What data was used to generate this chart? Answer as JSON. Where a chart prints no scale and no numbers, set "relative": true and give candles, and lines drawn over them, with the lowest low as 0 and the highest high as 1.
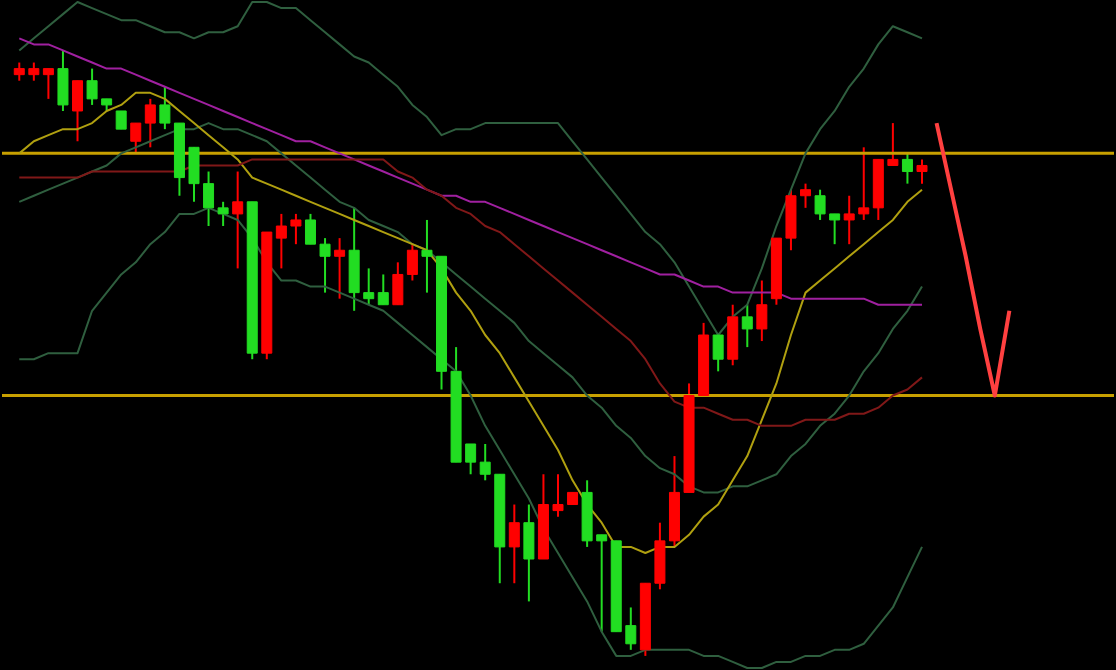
{
  "chart_data": {
    "type": "candlestick",
    "relative": true,
    "tick_labels": false,
    "categories": [
      null,
      null,
      null,
      null,
      null,
      null,
      null,
      null,
      null,
      null,
      null,
      null,
      null,
      null,
      null,
      null,
      null,
      null,
      null,
      null,
      null,
      null,
      null,
      null,
      null,
      null,
      null,
      null,
      null,
      null,
      null,
      null,
      null,
      null,
      null,
      null,
      null,
      null,
      null,
      null,
      null,
      null,
      null,
      null,
      null,
      null,
      null,
      null,
      null,
      null,
      null,
      null,
      null,
      null,
      null,
      null,
      null,
      null,
      null,
      null,
      null,
      null,
      null,
      null,
      null,
      null,
      null,
      null,
      null,
      null,
      null,
      null,
      null,
      null,
      null
    ],
    "ohlc": [
      [
        0.96,
        0.98,
        0.95,
        0.97
      ],
      [
        0.96,
        0.98,
        0.95,
        0.97
      ],
      [
        0.96,
        0.97,
        0.92,
        0.97
      ],
      [
        0.97,
        1,
        0.9,
        0.91
      ],
      [
        0.9,
        0.95,
        0.85,
        0.95
      ],
      [
        0.95,
        0.97,
        0.91,
        0.92
      ],
      [
        0.92,
        0.92,
        0.9,
        0.91
      ],
      [
        0.9,
        0.9,
        0.87,
        0.87
      ],
      [
        0.85,
        0.88,
        0.83,
        0.88
      ],
      [
        0.88,
        0.92,
        0.84,
        0.91
      ],
      [
        0.91,
        0.94,
        0.87,
        0.88
      ],
      [
        0.88,
        0.88,
        0.76,
        0.79
      ],
      [
        0.84,
        0.84,
        0.75,
        0.78
      ],
      [
        0.78,
        0.8,
        0.71,
        0.74
      ],
      [
        0.74,
        0.75,
        0.71,
        0.73
      ],
      [
        0.73,
        0.8,
        0.64,
        0.75
      ],
      [
        0.75,
        0.75,
        0.49,
        0.5
      ],
      [
        0.5,
        0.7,
        0.49,
        0.7
      ],
      [
        0.69,
        0.73,
        0.64,
        0.71
      ],
      [
        0.71,
        0.73,
        0.68,
        0.72
      ],
      [
        0.72,
        0.73,
        0.68,
        0.68
      ],
      [
        0.68,
        0.69,
        0.6,
        0.66
      ],
      [
        0.66,
        0.69,
        0.59,
        0.67
      ],
      [
        0.67,
        0.74,
        0.57,
        0.6
      ],
      [
        0.6,
        0.64,
        0.58,
        0.59
      ],
      [
        0.6,
        0.63,
        0.58,
        0.58
      ],
      [
        0.58,
        0.65,
        0.58,
        0.63
      ],
      [
        0.63,
        0.68,
        0.62,
        0.67
      ],
      [
        0.67,
        0.72,
        0.6,
        0.66
      ],
      [
        0.66,
        0.66,
        0.44,
        0.47
      ],
      [
        0.47,
        0.51,
        0.32,
        0.32
      ],
      [
        0.35,
        0.35,
        0.3,
        0.32
      ],
      [
        0.32,
        0.35,
        0.29,
        0.3
      ],
      [
        0.3,
        0.3,
        0.12,
        0.18
      ],
      [
        0.18,
        0.25,
        0.12,
        0.22
      ],
      [
        0.22,
        0.25,
        0.09,
        0.16
      ],
      [
        0.16,
        0.3,
        0.16,
        0.25
      ],
      [
        0.24,
        0.3,
        0.23,
        0.25
      ],
      [
        0.25,
        0.27,
        0.25,
        0.27
      ],
      [
        0.27,
        0.29,
        0.18,
        0.19
      ],
      [
        0.2,
        0.2,
        0.04,
        0.19
      ],
      [
        0.19,
        0.19,
        0.04,
        0.04
      ],
      [
        0.05,
        0.08,
        0.01,
        0.02
      ],
      [
        0.01,
        0.12,
        0,
        0.12
      ],
      [
        0.12,
        0.22,
        0.11,
        0.19
      ],
      [
        0.19,
        0.33,
        0.18,
        0.27
      ],
      [
        0.27,
        0.45,
        0.27,
        0.43
      ],
      [
        0.43,
        0.55,
        0.43,
        0.53
      ],
      [
        0.53,
        0.53,
        0.47,
        0.49
      ],
      [
        0.49,
        0.58,
        0.48,
        0.56
      ],
      [
        0.56,
        0.58,
        0.51,
        0.54
      ],
      [
        0.54,
        0.62,
        0.52,
        0.58
      ],
      [
        0.59,
        0.69,
        0.58,
        0.69
      ],
      [
        0.69,
        0.77,
        0.67,
        0.76
      ],
      [
        0.76,
        0.78,
        0.74,
        0.77
      ],
      [
        0.76,
        0.77,
        0.72,
        0.73
      ],
      [
        0.73,
        0.73,
        0.68,
        0.72
      ],
      [
        0.72,
        0.76,
        0.68,
        0.73
      ],
      [
        0.73,
        0.84,
        0.72,
        0.74
      ],
      [
        0.74,
        0.82,
        0.72,
        0.82
      ],
      [
        0.81,
        0.88,
        0.81,
        0.82
      ],
      [
        0.82,
        0.83,
        0.78,
        0.8
      ],
      [
        0.8,
        0.82,
        0.78,
        0.81
      ],
      null,
      null,
      null,
      null,
      null,
      null,
      null,
      null,
      null,
      null,
      null,
      null
    ],
    "colors": [
      "#ff0000",
      "#ff0000",
      "#ff0000",
      "#22dd22",
      "#ff0000",
      "#22dd22",
      "#22dd22",
      "#22dd22",
      "#ff0000",
      "#ff0000",
      "#22dd22",
      "#22dd22",
      "#22dd22",
      "#22dd22",
      "#22dd22",
      "#ff0000",
      "#22dd22",
      "#ff0000",
      "#ff0000",
      "#ff0000",
      "#22dd22",
      "#22dd22",
      "#ff0000",
      "#22dd22",
      "#22dd22",
      "#22dd22",
      "#ff0000",
      "#ff0000",
      "#22dd22",
      "#22dd22",
      "#22dd22",
      "#22dd22",
      "#22dd22",
      "#22dd22",
      "#ff0000",
      "#22dd22",
      "#ff0000",
      "#ff0000",
      "#ff0000",
      "#22dd22",
      "#22dd22",
      "#22dd22",
      "#22dd22",
      "#ff0000",
      "#ff0000",
      "#ff0000",
      "#ff0000",
      "#ff0000",
      "#22dd22",
      "#ff0000",
      "#22dd22",
      "#ff0000",
      "#ff0000",
      "#ff0000",
      "#ff0000",
      "#22dd22",
      "#22dd22",
      "#ff0000",
      "#ff0000",
      "#ff0000",
      "#ff0000",
      "#22dd22",
      "#ff0000",
      null,
      null,
      null,
      null,
      null,
      null,
      null,
      null,
      null,
      null,
      null,
      null
    ],
    "series": [
      {
        "type": "line",
        "color": "#2f5f3f",
        "values": [
          1.0,
          1.02,
          1.04,
          1.06,
          1.08,
          1.07,
          1.06,
          1.05,
          1.05,
          1.04,
          1.03,
          1.03,
          1.02,
          1.03,
          1.03,
          1.04,
          1.08,
          1.08,
          1.07,
          1.07,
          1.05,
          1.03,
          1.01,
          0.99,
          0.98,
          0.96,
          0.94,
          0.91,
          0.89,
          0.86,
          0.87,
          0.87,
          0.88,
          0.88,
          0.88,
          0.88,
          0.88,
          0.88,
          0.85,
          0.82,
          0.79,
          0.76,
          0.73,
          0.7,
          0.68,
          0.65,
          0.61,
          0.57,
          0.53,
          0.56,
          0.58,
          0.64,
          0.71,
          0.77,
          0.83,
          0.87,
          0.9,
          0.94,
          0.97,
          1.01,
          1.04,
          1.03,
          1.02,
          null,
          null,
          null,
          null,
          null,
          null,
          null,
          null,
          null,
          null,
          null,
          null
        ]
      },
      {
        "type": "line",
        "color": "#2f5f3f",
        "values": [
          0.75,
          0.76,
          0.77,
          0.78,
          0.79,
          0.8,
          0.81,
          0.83,
          0.84,
          0.85,
          0.86,
          0.87,
          0.87,
          0.88,
          0.87,
          0.87,
          0.86,
          0.85,
          0.83,
          0.81,
          0.79,
          0.77,
          0.75,
          0.74,
          0.72,
          0.71,
          0.7,
          0.68,
          0.67,
          0.65,
          0.63,
          0.61,
          0.59,
          0.57,
          0.55,
          0.52,
          0.5,
          0.48,
          0.46,
          0.43,
          0.41,
          0.38,
          0.36,
          0.33,
          0.31,
          0.3,
          0.28,
          0.27,
          0.27,
          0.28,
          0.28,
          0.29,
          0.3,
          0.33,
          0.35,
          0.38,
          0.4,
          0.43,
          0.47,
          0.5,
          0.54,
          0.57,
          0.61,
          null,
          null,
          null,
          null,
          null,
          null,
          null,
          null,
          null,
          null,
          null,
          null
        ]
      },
      {
        "type": "line",
        "color": "#2f5f3f",
        "values": [
          0.49,
          0.49,
          0.5,
          0.5,
          0.5,
          0.57,
          0.6,
          0.63,
          0.65,
          0.68,
          0.7,
          0.73,
          0.73,
          0.74,
          0.73,
          0.72,
          0.69,
          0.65,
          0.62,
          0.62,
          0.61,
          0.61,
          0.6,
          0.59,
          0.58,
          0.57,
          0.55,
          0.53,
          0.51,
          0.49,
          0.47,
          0.43,
          0.38,
          0.34,
          0.3,
          0.26,
          0.21,
          0.17,
          0.13,
          0.09,
          0.04,
          0,
          0,
          0.01,
          0.01,
          0.01,
          0.01,
          0,
          0,
          -0.01,
          -0.02,
          -0.02,
          -0.01,
          -0.01,
          0,
          0,
          0.01,
          0.01,
          0.02,
          0.05,
          0.08,
          0.13,
          0.18,
          null,
          null,
          null,
          null,
          null,
          null,
          null,
          null,
          null,
          null,
          null,
          null
        ]
      },
      {
        "type": "line",
        "color": "#b0a010",
        "values": [
          0.83,
          0.85,
          0.86,
          0.87,
          0.87,
          0.88,
          0.9,
          0.91,
          0.93,
          0.93,
          0.92,
          0.9,
          0.88,
          0.86,
          0.84,
          0.82,
          0.79,
          0.78,
          0.77,
          0.76,
          0.75,
          0.74,
          0.73,
          0.72,
          0.71,
          0.7,
          0.69,
          0.68,
          0.67,
          0.64,
          0.6,
          0.57,
          0.53,
          0.5,
          0.46,
          0.42,
          0.38,
          0.34,
          0.29,
          0.25,
          0.22,
          0.18,
          0.18,
          0.17,
          0.18,
          0.18,
          0.2,
          0.23,
          0.25,
          0.29,
          0.33,
          0.39,
          0.45,
          0.53,
          0.6,
          0.62,
          0.64,
          0.66,
          0.68,
          0.7,
          0.72,
          0.75,
          0.77,
          null,
          null,
          null,
          null,
          null,
          null,
          null,
          null,
          null,
          null,
          null,
          null
        ]
      },
      {
        "type": "line",
        "color": "#a020a0",
        "values": [
          1.02,
          1.01,
          1.01,
          1.0,
          0.99,
          0.98,
          0.97,
          0.97,
          0.96,
          0.95,
          0.94,
          0.93,
          0.92,
          0.91,
          0.9,
          0.89,
          0.88,
          0.87,
          0.86,
          0.85,
          0.85,
          0.84,
          0.83,
          0.82,
          0.81,
          0.8,
          0.79,
          0.78,
          0.77,
          0.76,
          0.76,
          0.75,
          0.75,
          0.74,
          0.73,
          0.72,
          0.71,
          0.7,
          0.69,
          0.68,
          0.67,
          0.66,
          0.65,
          0.64,
          0.63,
          0.63,
          0.62,
          0.61,
          0.61,
          0.6,
          0.6,
          0.6,
          0.6,
          0.59,
          0.59,
          0.59,
          0.59,
          0.59,
          0.59,
          0.58,
          0.58,
          0.58,
          0.58,
          null,
          null,
          null,
          null,
          null,
          null,
          null,
          null,
          null,
          null,
          null,
          null
        ]
      },
      {
        "type": "line",
        "color": "#801818",
        "values": [
          0.79,
          0.79,
          0.79,
          0.79,
          0.79,
          0.8,
          0.8,
          0.8,
          0.8,
          0.8,
          0.8,
          0.8,
          0.81,
          0.81,
          0.81,
          0.81,
          0.82,
          0.82,
          0.82,
          0.82,
          0.82,
          0.82,
          0.82,
          0.82,
          0.82,
          0.82,
          0.8,
          0.79,
          0.77,
          0.76,
          0.74,
          0.73,
          0.71,
          0.7,
          0.68,
          0.66,
          0.64,
          0.62,
          0.6,
          0.58,
          0.56,
          0.54,
          0.52,
          0.49,
          0.45,
          0.42,
          0.41,
          0.41,
          0.4,
          0.39,
          0.39,
          0.38,
          0.38,
          0.38,
          0.39,
          0.39,
          0.39,
          0.4,
          0.4,
          0.41,
          0.43,
          0.44,
          0.46,
          null,
          null,
          null,
          null,
          null,
          null,
          null,
          null,
          null,
          null,
          null,
          null
        ]
      },
      {
        "type": "line",
        "color": "#ff4040",
        "values": [
          null,
          null,
          null,
          null,
          null,
          null,
          null,
          null,
          null,
          null,
          null,
          null,
          null,
          null,
          null,
          null,
          null,
          null,
          null,
          null,
          null,
          null,
          null,
          null,
          null,
          null,
          null,
          null,
          null,
          null,
          null,
          null,
          null,
          null,
          null,
          null,
          null,
          null,
          null,
          null,
          null,
          null,
          null,
          null,
          null,
          null,
          null,
          null,
          null,
          null,
          null,
          null,
          null,
          null,
          null,
          null,
          null,
          null,
          null,
          null,
          null,
          null,
          null,
          0.88,
          0.77,
          0.66,
          0.54,
          0.43,
          0.57,
          null,
          null,
          null,
          null,
          null,
          null
        ]
      }
    ],
    "ref_lines": [
      {
        "axis": "y",
        "value": 0.83,
        "color": "#c8a000"
      },
      {
        "axis": "y",
        "value": 0.43,
        "color": "#c8a000"
      }
    ]
  }
}
